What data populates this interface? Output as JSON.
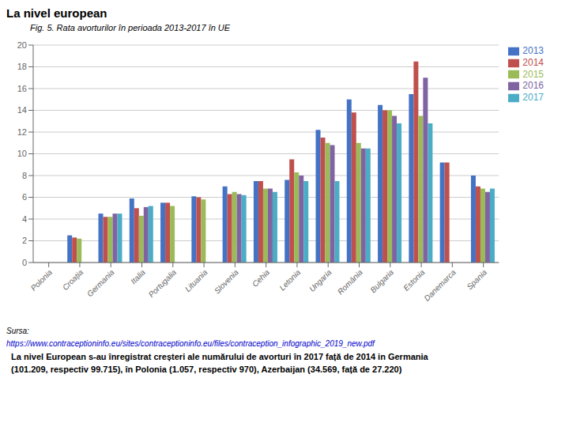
{
  "chart_data": {
    "type": "bar",
    "title": "La nivel european",
    "subtitle": "Fig. 5.  Rata avorturilor în perioada 2013-2017 în UE",
    "categories": [
      "Polonia",
      "Croația",
      "Germania",
      "Italia",
      "Portugalia",
      "Lituania",
      "Slovenia",
      "Cehia",
      "Letonia",
      "Ungaria",
      "România",
      "Bulgaria",
      "Estonia",
      "Danemarca",
      "Spania"
    ],
    "series": [
      {
        "name": "2013",
        "color": "#4472C4",
        "values": [
          0.0,
          2.5,
          4.5,
          5.9,
          5.5,
          6.1,
          7.0,
          7.5,
          7.6,
          12.2,
          15.0,
          14.5,
          15.5,
          9.2,
          8.0
        ]
      },
      {
        "name": "2014",
        "color": "#C0504D",
        "values": [
          0.0,
          2.3,
          4.2,
          5.0,
          5.5,
          6.0,
          6.3,
          7.5,
          9.5,
          11.5,
          13.8,
          14.0,
          18.5,
          9.2,
          7.0
        ]
      },
      {
        "name": "2015",
        "color": "#9BBB59",
        "values": [
          0.0,
          2.2,
          4.2,
          4.3,
          5.2,
          5.8,
          6.5,
          6.8,
          8.3,
          11.0,
          11.0,
          14.0,
          13.5,
          0.0,
          6.8
        ]
      },
      {
        "name": "2016",
        "color": "#8064A2",
        "values": [
          0.0,
          0.0,
          4.5,
          5.1,
          0.0,
          0.0,
          6.3,
          6.8,
          8.0,
          10.8,
          10.5,
          13.5,
          17.0,
          0.0,
          6.5
        ]
      },
      {
        "name": "2017",
        "color": "#4BACC6",
        "values": [
          0.0,
          0.0,
          4.5,
          5.2,
          0.0,
          0.0,
          6.2,
          6.5,
          7.5,
          7.5,
          10.5,
          12.8,
          12.8,
          0.0,
          6.8
        ]
      }
    ],
    "ylim": [
      0,
      20
    ],
    "yticks": [
      0,
      2,
      4,
      6,
      8,
      10,
      12,
      14,
      16,
      18,
      20
    ],
    "grid": true,
    "legend": "right",
    "annotations": [
      {
        "text": "Sursa: "
      },
      {
        "text": "https://www.contraceptioninfo.eu/sites/contraceptioninfo.eu/files/contraception_infographic_2019_new.pdf",
        "color": "#0000CC"
      },
      {
        "text": "  La nivel European s-au înregistrat creșteri ale numărului de avorturi în 2017 față de 2014 in Germania"
      },
      {
        "text": "  (101.209, respectiv 99.715), în Polonia (1.057, respectiv 970), Azerbaijan (34.569, față de 27.220)"
      }
    ]
  }
}
